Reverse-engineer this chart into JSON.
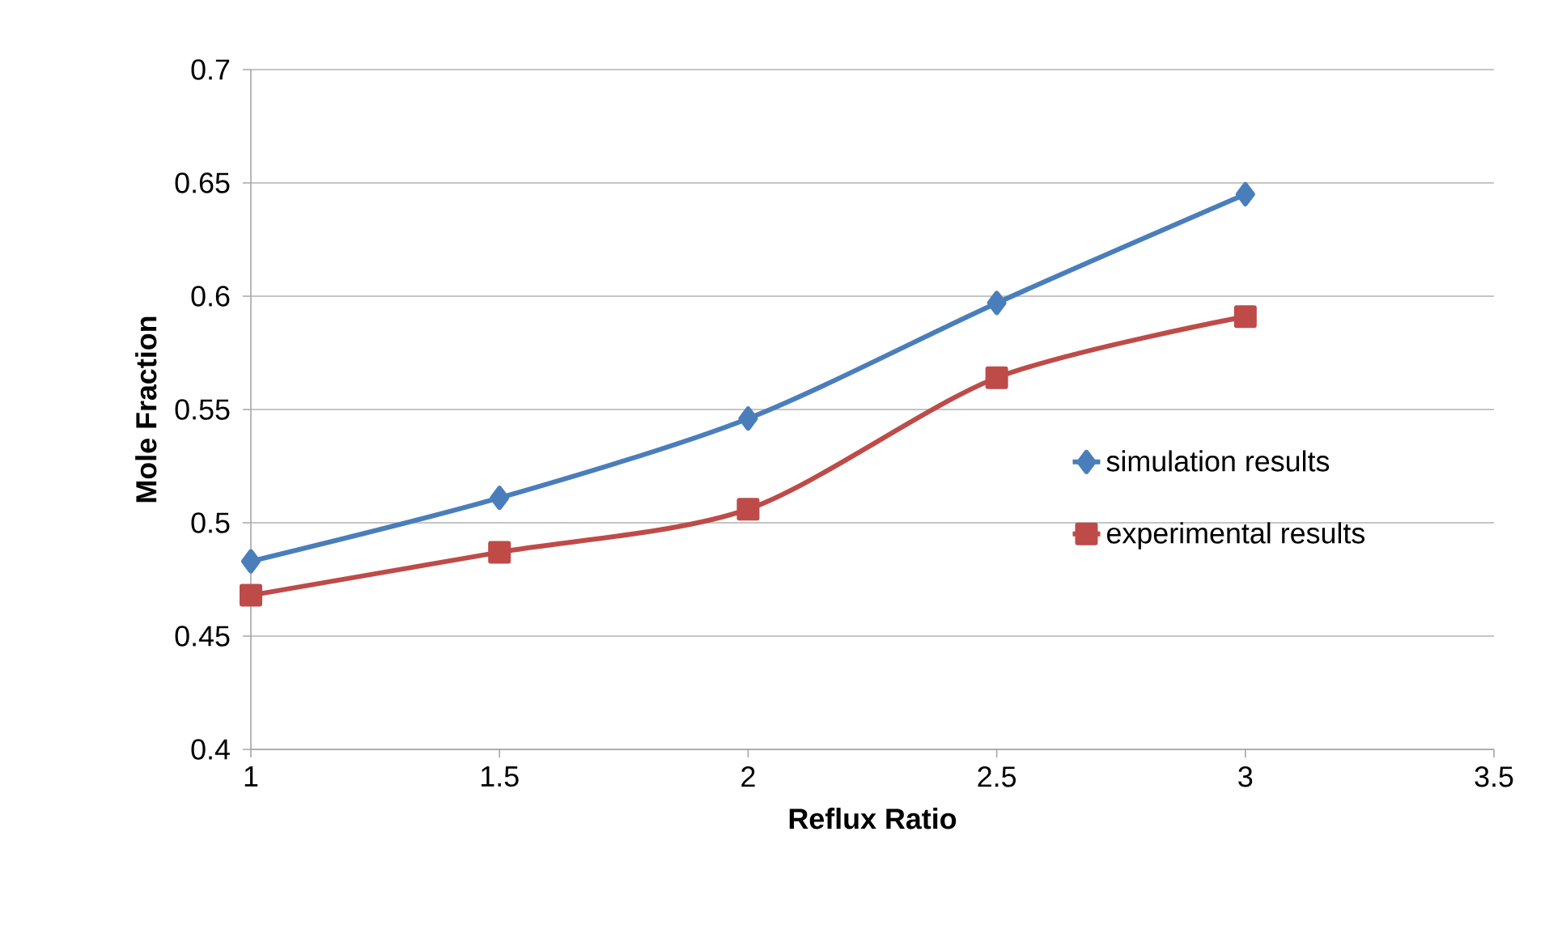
{
  "chart_data": {
    "type": "line",
    "xlabel": "Reflux Ratio",
    "ylabel": "Mole Fraction",
    "x": [
      1,
      1.5,
      2,
      2.5,
      3
    ],
    "series": [
      {
        "name": "simulation results",
        "color": "#4a7ebb",
        "marker": "diamond",
        "values": [
          0.483,
          0.511,
          0.546,
          0.597,
          0.645
        ]
      },
      {
        "name": "experimental results",
        "color": "#be4b48",
        "marker": "square",
        "values": [
          0.468,
          0.487,
          0.506,
          0.564,
          0.591
        ]
      }
    ],
    "xlim": [
      1,
      3.5
    ],
    "xticks": [
      1,
      1.5,
      2,
      2.5,
      3,
      3.5
    ],
    "ylim": [
      0.4,
      0.7
    ],
    "yticks": [
      0.4,
      0.45,
      0.5,
      0.55,
      0.6,
      0.65,
      0.7
    ],
    "grid": "y",
    "legend": "right",
    "line_style": "solid"
  }
}
